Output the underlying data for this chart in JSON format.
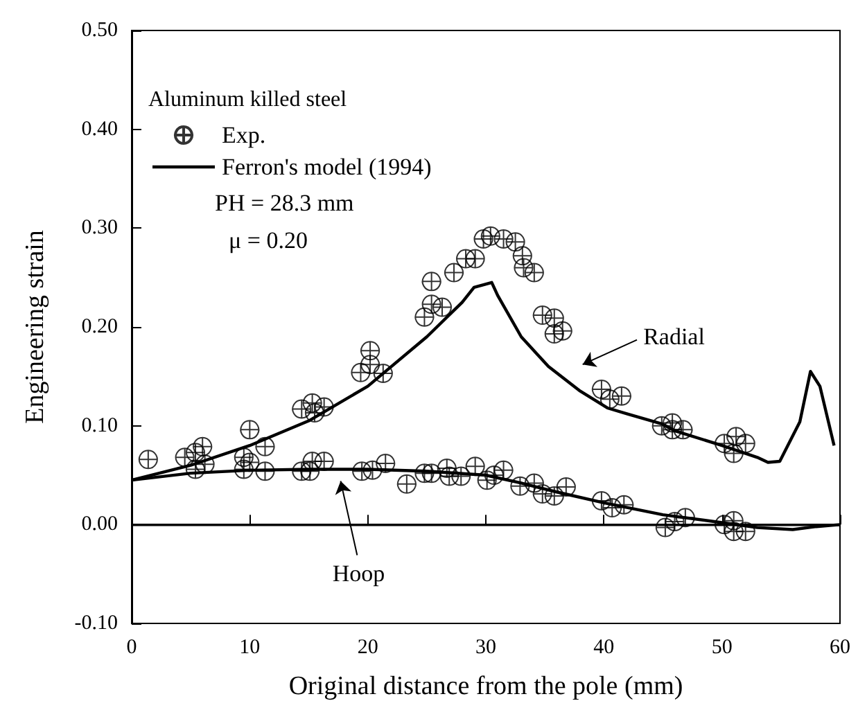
{
  "chart_data": {
    "type": "scatter",
    "xlabel": "Original distance from the pole (mm)",
    "ylabel": "Engineering strain",
    "legend_title": "Aluminum killed steel",
    "legend": "top left",
    "grid": false,
    "xlim": [
      0,
      60
    ],
    "xticks": [
      0,
      10,
      20,
      30,
      40,
      50,
      60
    ],
    "ylim": [
      -0.1,
      0.5
    ],
    "yticks": [
      {
        "value": -0.1,
        "label": "-0.10"
      },
      {
        "value": 0,
        "label": "0.00"
      },
      {
        "value": 0.1,
        "label": "0.10"
      },
      {
        "value": 0.2,
        "label": "0.20"
      },
      {
        "value": 0.3,
        "label": "0.30"
      },
      {
        "value": 0.4,
        "label": "0.40"
      },
      {
        "value": 0.5,
        "label": "0.50"
      }
    ],
    "ref_lines": [
      {
        "axis": "y",
        "value": 0,
        "label": null,
        "color": "#000000"
      }
    ],
    "annotations": [
      "PH = 28.3 mm",
      "μ = 0.20",
      "Radial",
      "Hoop"
    ],
    "series": [
      {
        "name": "Exp.",
        "marker": "cross",
        "color": "#000000",
        "x": [
          1.4,
          4.5,
          5.4,
          6.0,
          9.5,
          10.0,
          11.3,
          14.4,
          15.3,
          15.5,
          16.3,
          19.4,
          20.2,
          20.2,
          21.3,
          24.8,
          25.4,
          26.3,
          25.4,
          27.3,
          28.3,
          29.1,
          29.8,
          30.4,
          31.5,
          32.5,
          33.1,
          33.2,
          34.1,
          34.8,
          35.8,
          35.8,
          36.5,
          39.8,
          40.5,
          41.5,
          44.9,
          45.8,
          45.8,
          46.7,
          50.2,
          51.2,
          51.0,
          52.0,
          5.4,
          6.2,
          9.5,
          10.0,
          11.3,
          14.4,
          15.1,
          15.3,
          16.3,
          19.5,
          20.4,
          21.5,
          23.3,
          24.8,
          25.4,
          26.7,
          26.9,
          27.9,
          29.1,
          30.1,
          30.7,
          31.5,
          32.9,
          34.1,
          34.8,
          35.8,
          36.8,
          39.8,
          40.7,
          41.7,
          45.2,
          46.0,
          46.9,
          50.2,
          51.0,
          51.0,
          52.0
        ],
        "values": [
          0.066,
          0.068,
          0.073,
          0.079,
          0.068,
          0.096,
          0.079,
          0.117,
          0.123,
          0.113,
          0.119,
          0.154,
          0.162,
          0.176,
          0.153,
          0.21,
          0.223,
          0.22,
          0.246,
          0.255,
          0.269,
          0.269,
          0.289,
          0.292,
          0.289,
          0.286,
          0.272,
          0.26,
          0.255,
          0.212,
          0.209,
          0.193,
          0.196,
          0.137,
          0.127,
          0.13,
          0.1,
          0.103,
          0.096,
          0.096,
          0.082,
          0.089,
          0.072,
          0.082,
          0.056,
          0.061,
          0.056,
          0.063,
          0.054,
          0.054,
          0.054,
          0.064,
          0.064,
          0.054,
          0.055,
          0.062,
          0.041,
          0.052,
          0.052,
          0.057,
          0.049,
          0.049,
          0.059,
          0.045,
          0.05,
          0.055,
          0.039,
          0.042,
          0.031,
          0.029,
          0.038,
          0.024,
          0.017,
          0.02,
          -0.003,
          0.003,
          0.007,
          0,
          0.004,
          -0.007,
          -0.007
        ]
      },
      {
        "name": "Ferron's model (1994)",
        "type": "line",
        "marker": "none",
        "line_style": "solid",
        "color": "#000000",
        "x": [
          0,
          5,
          10,
          15,
          20,
          25,
          28,
          29,
          30.5,
          31,
          33,
          35.3,
          38,
          40.3,
          42,
          44.9,
          46,
          50,
          53,
          53.9,
          54.9,
          56.6,
          57.5,
          58.3,
          59.5
        ],
        "values": [
          0.045,
          0.06,
          0.08,
          0.105,
          0.14,
          0.19,
          0.225,
          0.24,
          0.245,
          0.232,
          0.19,
          0.16,
          0.135,
          0.118,
          0.112,
          0.102,
          0.095,
          0.08,
          0.068,
          0.063,
          0.064,
          0.104,
          0.155,
          0.14,
          0.08
        ]
      },
      {
        "type": "line",
        "marker": "none",
        "line_style": "solid",
        "color": "#000000",
        "x": [
          0,
          5,
          10,
          15,
          20,
          25,
          30,
          33,
          36,
          40,
          45,
          50,
          53,
          56,
          58,
          60
        ],
        "values": [
          0.045,
          0.052,
          0.055,
          0.056,
          0.056,
          0.054,
          0.05,
          0.042,
          0.033,
          0.022,
          0.01,
          0.002,
          -0.003,
          -0.005,
          -0.002,
          0
        ]
      }
    ]
  }
}
